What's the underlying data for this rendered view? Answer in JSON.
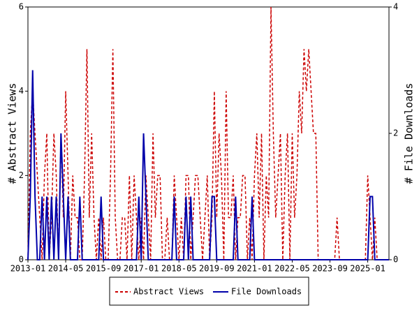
{
  "chart_data": {
    "type": "line",
    "x": [
      "2013-01",
      "2013-02",
      "2013-03",
      "2013-04",
      "2013-05",
      "2013-06",
      "2013-07",
      "2013-08",
      "2013-09",
      "2013-10",
      "2013-11",
      "2013-12",
      "2014-01",
      "2014-02",
      "2014-03",
      "2014-04",
      "2014-05",
      "2014-06",
      "2014-07",
      "2014-08",
      "2014-09",
      "2014-10",
      "2014-11",
      "2014-12",
      "2015-01",
      "2015-02",
      "2015-03",
      "2015-04",
      "2015-05",
      "2015-06",
      "2015-07",
      "2015-08",
      "2015-09",
      "2015-10",
      "2015-11",
      "2015-12",
      "2016-01",
      "2016-02",
      "2016-03",
      "2016-04",
      "2016-05",
      "2016-06",
      "2016-07",
      "2016-08",
      "2016-09",
      "2016-10",
      "2016-11",
      "2016-12",
      "2017-01",
      "2017-02",
      "2017-03",
      "2017-04",
      "2017-05",
      "2017-06",
      "2017-07",
      "2017-08",
      "2017-09",
      "2017-10",
      "2017-11",
      "2017-12",
      "2018-01",
      "2018-02",
      "2018-03",
      "2018-04",
      "2018-05",
      "2018-06",
      "2018-07",
      "2018-08",
      "2018-09",
      "2018-10",
      "2018-11",
      "2018-12",
      "2019-01",
      "2019-02",
      "2019-03",
      "2019-04",
      "2019-05",
      "2019-06",
      "2019-07",
      "2019-08",
      "2019-09",
      "2019-10",
      "2019-11",
      "2019-12",
      "2020-01",
      "2020-02",
      "2020-03",
      "2020-04",
      "2020-05",
      "2020-06",
      "2020-07",
      "2020-08",
      "2020-09",
      "2020-10",
      "2020-11",
      "2020-12",
      "2021-01",
      "2021-02",
      "2021-03",
      "2021-04",
      "2021-05",
      "2021-06",
      "2021-07",
      "2021-08",
      "2021-09",
      "2021-10",
      "2021-11",
      "2021-12",
      "2022-01",
      "2022-02",
      "2022-03",
      "2022-04",
      "2022-05",
      "2022-06",
      "2022-07",
      "2022-08",
      "2022-09",
      "2022-10",
      "2022-11",
      "2022-12",
      "2023-01",
      "2023-02",
      "2023-03",
      "2023-04",
      "2023-05",
      "2023-06",
      "2023-07",
      "2023-08",
      "2023-09",
      "2023-10",
      "2023-11",
      "2023-12",
      "2024-01",
      "2024-02",
      "2024-03",
      "2024-04",
      "2024-05",
      "2024-06",
      "2024-07",
      "2024-08",
      "2024-09",
      "2024-10",
      "2024-11",
      "2024-12",
      "2025-01",
      "2025-02",
      "2025-03",
      "2025-04",
      "2025-05",
      "2025-06",
      "2025-07",
      "2025-08",
      "2025-09",
      "2025-10"
    ],
    "xticks": [
      "2013-01",
      "2014-05",
      "2015-09",
      "2017-01",
      "2018-05",
      "2019-09",
      "2021-01",
      "2022-05",
      "2023-09",
      "2025-01"
    ],
    "ylabel": "# Abstract Views",
    "y2label": "# File Downloads",
    "ylim": [
      0,
      6
    ],
    "yticks": [
      0,
      2,
      4,
      6
    ],
    "y2lim": [
      0,
      4
    ],
    "y2ticks": [
      0,
      2,
      4
    ],
    "series": [
      {
        "name": "Abstract Views",
        "color": "#cc0000",
        "dashed": true,
        "values": [
          0,
          3,
          4,
          3,
          2,
          1,
          0,
          2,
          3,
          0,
          1,
          3,
          2,
          0,
          3,
          1,
          4,
          2,
          0,
          2,
          1,
          1,
          0,
          0,
          2,
          5,
          1,
          3,
          1,
          0,
          1,
          0,
          1,
          0,
          0,
          2,
          5,
          1,
          0,
          0,
          1,
          1,
          0,
          2,
          0,
          2,
          1,
          0,
          1,
          0,
          2,
          1,
          0,
          3,
          1,
          2,
          2,
          0,
          0,
          1,
          0,
          0,
          2,
          1,
          0,
          1,
          0,
          2,
          2,
          0,
          1,
          2,
          2,
          1,
          0,
          1,
          2,
          0,
          1,
          4,
          1,
          3,
          2,
          0,
          4,
          1,
          1,
          2,
          0,
          1,
          1,
          2,
          2,
          0,
          1,
          0,
          2,
          3,
          1,
          3,
          0,
          2,
          1,
          6,
          3,
          1,
          2,
          3,
          0,
          2,
          3,
          0,
          3,
          1,
          2,
          4,
          3,
          5,
          4,
          5,
          4,
          3,
          3,
          0,
          0,
          0,
          0,
          0,
          0,
          0,
          0,
          1,
          0,
          0,
          0,
          0,
          0,
          0,
          0,
          0,
          0,
          0,
          0,
          0,
          2,
          1,
          0,
          1,
          0,
          0,
          0,
          0,
          0,
          0
        ]
      },
      {
        "name": "File Downloads",
        "color": "#0000aa",
        "dashed": false,
        "axis": "y2",
        "values": [
          0,
          1,
          3,
          1,
          0,
          0,
          1,
          0,
          1,
          0,
          1,
          0,
          1,
          0,
          2,
          1,
          0,
          1,
          0,
          0,
          0,
          0,
          1,
          0,
          0,
          0,
          0,
          0,
          0,
          0,
          0,
          1,
          0,
          0,
          0,
          0,
          0,
          0,
          0,
          0,
          0,
          0,
          0,
          0,
          0,
          0,
          0,
          1,
          0,
          2,
          1,
          0,
          0,
          0,
          0,
          0,
          0,
          0,
          0,
          0,
          0,
          0,
          1,
          0,
          0,
          0,
          0,
          1,
          0,
          1,
          0,
          0,
          0,
          0,
          0,
          0,
          0,
          0,
          1,
          1,
          0,
          0,
          0,
          0,
          0,
          0,
          0,
          0,
          1,
          0,
          0,
          0,
          0,
          0,
          0,
          1,
          0,
          0,
          0,
          0,
          0,
          0,
          0,
          0,
          0,
          0,
          0,
          0,
          0,
          0,
          0,
          0,
          0,
          0,
          0,
          0,
          0,
          0,
          0,
          0,
          0,
          0,
          0,
          0,
          0,
          0,
          0,
          0,
          0,
          0,
          0,
          0,
          0,
          0,
          0,
          0,
          0,
          0,
          0,
          0,
          0,
          0,
          0,
          0,
          0,
          1,
          1,
          0,
          0,
          0,
          0,
          0,
          0,
          0
        ]
      }
    ]
  }
}
